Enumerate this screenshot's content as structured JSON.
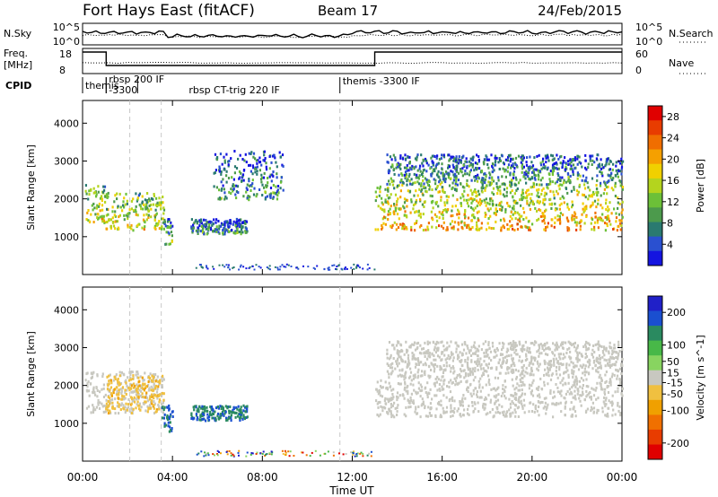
{
  "header": {
    "station": "Fort Hays East (fitACF)",
    "beam": "Beam 17",
    "date": "24/Feb/2015"
  },
  "noise_panel": {
    "left_label": "N.Sky",
    "right_label": "N.Search",
    "left_ticks": [
      "10^5",
      "10^0"
    ],
    "right_ticks": [
      "10^5",
      "10^0"
    ]
  },
  "freq_panel": {
    "left_label_1": "Freq.",
    "left_label_2": "[MHz]",
    "right_label": "Nave",
    "left_ticks": [
      "18",
      "8"
    ],
    "right_ticks": [
      "60",
      "0"
    ]
  },
  "cpid": {
    "label": "CPID",
    "segments": [
      {
        "start": 0.0,
        "end": 1.05,
        "text": "themis"
      },
      {
        "start": 1.05,
        "end": 2.45,
        "text": "rbsp 200 IF"
      },
      {
        "start": 1.05,
        "end": 2.45,
        "text": "-3300"
      },
      {
        "start": 2.45,
        "end": 11.45,
        "text": "rbsp CT-trig 220 IF"
      },
      {
        "start": 11.45,
        "end": 24.0,
        "text": "themis -3300 IF"
      }
    ]
  },
  "colors": {
    "data_line": "#000000",
    "grid_dash": "#c8c8c8"
  },
  "chart_data": [
    {
      "type": "heatmap",
      "title": "Power",
      "xlabel": "Time UT",
      "ylabel": "Slant Range [km]",
      "xlim": [
        0,
        24
      ],
      "ylim": [
        0,
        4600
      ],
      "x_ticks": [
        "00:00",
        "04:00",
        "08:00",
        "12:00",
        "16:00",
        "20:00",
        "00:00"
      ],
      "y_ticks": [
        1000,
        2000,
        3000,
        4000
      ],
      "colorbar": {
        "label": "Power [dB]",
        "ticks": [
          4,
          8,
          12,
          16,
          20,
          24,
          28
        ],
        "range": [
          0,
          30
        ],
        "colors": [
          "#1414e0",
          "#2a50d0",
          "#2a7a70",
          "#4c9a4c",
          "#6cc038",
          "#b4d41e",
          "#f0d000",
          "#f5a000",
          "#f06e00",
          "#e83c00",
          "#e00000"
        ]
      },
      "regions": [
        {
          "x": [
            0.1,
            1.0
          ],
          "y": [
            1400,
            2400
          ],
          "level": 18
        },
        {
          "x": [
            1.0,
            3.6
          ],
          "y": [
            1200,
            2200
          ],
          "level": 18
        },
        {
          "x": [
            3.6,
            4.0
          ],
          "y": [
            800,
            1500
          ],
          "level": 12
        },
        {
          "x": [
            4.8,
            7.3
          ],
          "y": [
            1100,
            1500
          ],
          "level": 9
        },
        {
          "x": [
            5.8,
            8.9
          ],
          "y": [
            2000,
            3300
          ],
          "level": 9
        },
        {
          "x": [
            13.0,
            24.0
          ],
          "y": [
            1200,
            2400
          ],
          "level": 20
        },
        {
          "x": [
            13.5,
            24.0
          ],
          "y": [
            2400,
            3200
          ],
          "level": 10
        }
      ]
    },
    {
      "type": "heatmap",
      "title": "Velocity",
      "xlabel": "Time UT",
      "ylabel": "Slant Range [km]",
      "xlim": [
        0,
        24
      ],
      "ylim": [
        0,
        4600
      ],
      "x_ticks": [
        "00:00",
        "04:00",
        "08:00",
        "12:00",
        "16:00",
        "20:00",
        "00:00"
      ],
      "y_ticks": [
        1000,
        2000,
        3000,
        4000
      ],
      "colorbar": {
        "label": "Velocity [m s^-1]",
        "ticks": [
          200,
          100,
          50,
          15,
          -15,
          -50,
          -100,
          -200
        ],
        "range": [
          -250,
          250
        ],
        "colors": [
          "#2020c8",
          "#1a4fd0",
          "#2a8a60",
          "#48b848",
          "#88d460",
          "#c8c8c0",
          "#f0c040",
          "#f0a000",
          "#f07000",
          "#e83c00",
          "#e00000"
        ]
      },
      "regions": [
        {
          "x": [
            0.1,
            3.6
          ],
          "y": [
            1300,
            2400
          ],
          "velocity": 0
        },
        {
          "x": [
            1.0,
            3.6
          ],
          "y": [
            1300,
            2300
          ],
          "velocity": -60
        },
        {
          "x": [
            3.5,
            4.0
          ],
          "y": [
            800,
            1500
          ],
          "velocity": 180
        },
        {
          "x": [
            4.8,
            7.3
          ],
          "y": [
            1100,
            1500
          ],
          "velocity": 170
        },
        {
          "x": [
            13.0,
            24.0
          ],
          "y": [
            1200,
            2400
          ],
          "velocity": 0
        },
        {
          "x": [
            13.5,
            24.0
          ],
          "y": [
            2400,
            3200
          ],
          "velocity": 0
        }
      ]
    }
  ]
}
